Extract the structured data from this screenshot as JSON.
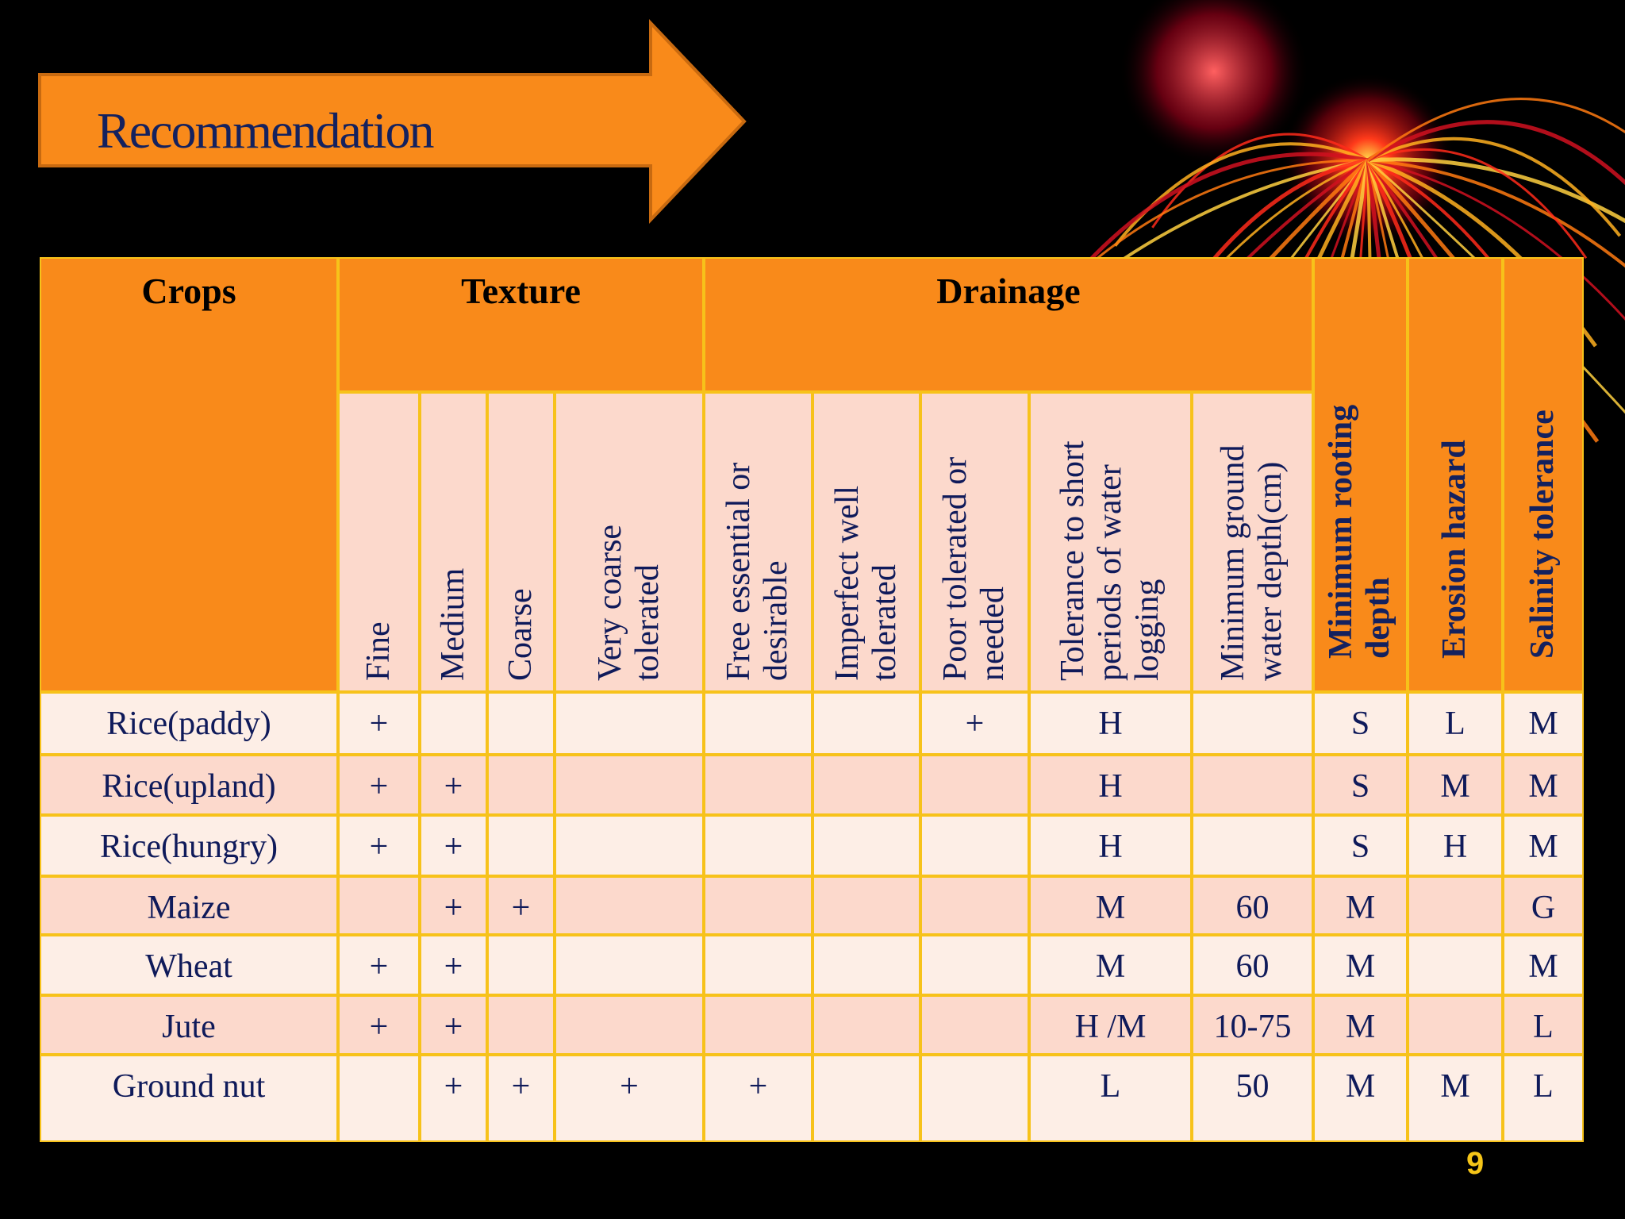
{
  "title": "Recommendation",
  "table": {
    "groups": [
      "Crops",
      "Texture",
      "Drainage"
    ],
    "columns": [
      "Fine",
      "Medium",
      "Coarse",
      "Very coarse tolerated",
      "Free essential or desirable",
      "Imperfect well tolerated",
      "Poor tolerated or needed",
      "Tolerance to short periods of water logging",
      "Minimum ground water depth(cm)",
      "Minimum rooting depth",
      "Erosion hazard",
      "Salinity tolerance"
    ],
    "rows": [
      [
        "Rice(paddy)",
        "+",
        null,
        null,
        null,
        null,
        null,
        "+",
        "H",
        null,
        "S",
        "L",
        "M"
      ],
      [
        "Rice(upland)",
        "+",
        "+",
        null,
        null,
        null,
        null,
        null,
        "H",
        null,
        "S",
        "M",
        "M"
      ],
      [
        "Rice(hungry)",
        "+",
        "+",
        null,
        null,
        null,
        null,
        null,
        "H",
        null,
        "S",
        "H",
        "M"
      ],
      [
        "Maize",
        null,
        "+",
        "+",
        null,
        null,
        null,
        null,
        "M",
        60,
        "M",
        null,
        "G"
      ],
      [
        "Wheat",
        "+",
        "+",
        null,
        null,
        null,
        null,
        null,
        "M",
        60,
        "M",
        null,
        "M"
      ],
      [
        "Jute",
        "+",
        "+",
        null,
        null,
        null,
        null,
        null,
        "H /M",
        "10-75",
        "M",
        null,
        "L"
      ],
      [
        "Ground nut",
        null,
        "+",
        "+",
        "+",
        "+",
        null,
        null,
        "L",
        50,
        "M",
        "M",
        "L"
      ]
    ]
  },
  "page_number": "9"
}
